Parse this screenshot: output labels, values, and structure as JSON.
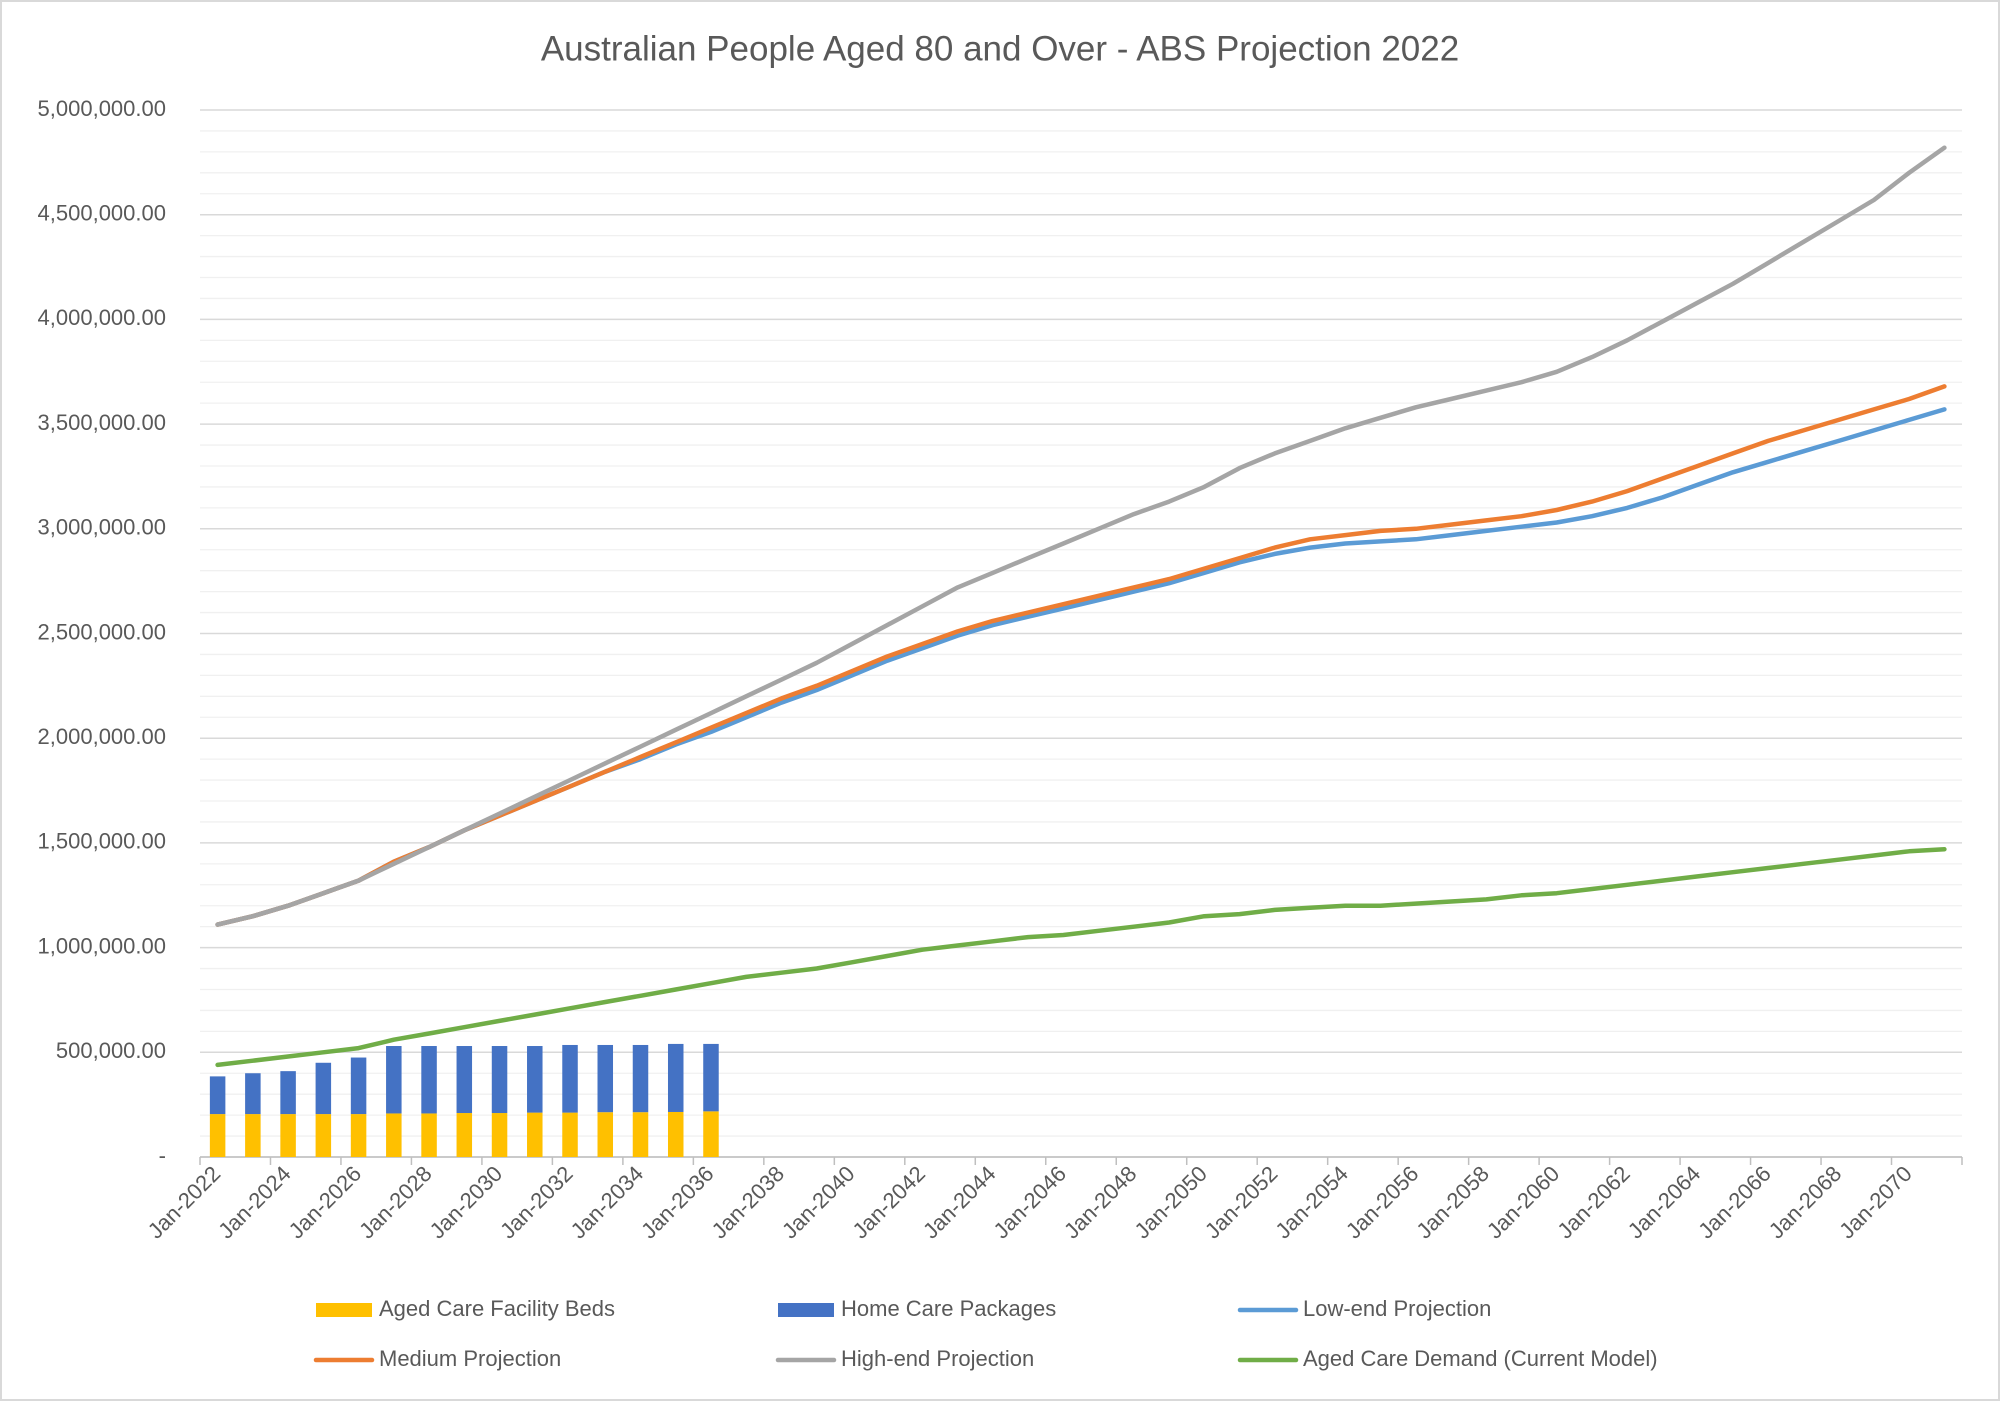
{
  "chart_data": {
    "type": "combo",
    "title": "Australian People Aged 80 and Over - ABS Projection 2022",
    "categories": [
      "Jan-2022",
      null,
      "Jan-2024",
      null,
      "Jan-2026",
      null,
      "Jan-2028",
      null,
      "Jan-2030",
      null,
      "Jan-2032",
      null,
      "Jan-2034",
      null,
      "Jan-2036",
      null,
      "Jan-2038",
      null,
      "Jan-2040",
      null,
      "Jan-2042",
      null,
      "Jan-2044",
      null,
      "Jan-2046",
      null,
      "Jan-2048",
      null,
      "Jan-2050",
      null,
      "Jan-2052",
      null,
      "Jan-2054",
      null,
      "Jan-2056",
      null,
      "Jan-2058",
      null,
      "Jan-2060",
      null,
      "Jan-2062",
      null,
      "Jan-2064",
      null,
      "Jan-2066",
      null,
      "Jan-2068",
      null,
      "Jan-2070",
      null
    ],
    "ylim": [
      0,
      5000000
    ],
    "yticks": [
      {
        "value": 0,
        "label": "-"
      },
      {
        "value": 500000,
        "label": "500,000.00"
      },
      {
        "value": 1000000,
        "label": "1,000,000.00"
      },
      {
        "value": 1500000,
        "label": "1,500,000.00"
      },
      {
        "value": 2000000,
        "label": "2,000,000.00"
      },
      {
        "value": 2500000,
        "label": "2,500,000.00"
      },
      {
        "value": 3000000,
        "label": "3,000,000.00"
      },
      {
        "value": 3500000,
        "label": "3,500,000.00"
      },
      {
        "value": 4000000,
        "label": "4,000,000.00"
      },
      {
        "value": 4500000,
        "label": "4,500,000.00"
      },
      {
        "value": 5000000,
        "label": "5,000,000.00"
      }
    ],
    "minor_yticks": [
      100000,
      200000,
      300000,
      400000,
      600000,
      700000,
      800000,
      900000,
      1100000,
      1200000,
      1300000,
      1400000,
      1600000,
      1700000,
      1800000,
      1900000,
      2100000,
      2200000,
      2300000,
      2400000,
      2600000,
      2700000,
      2800000,
      2900000,
      3100000,
      3200000,
      3300000,
      3400000,
      3600000,
      3700000,
      3800000,
      3900000,
      4100000,
      4200000,
      4300000,
      4400000,
      4600000,
      4700000,
      4800000,
      4900000
    ],
    "grid": true,
    "legend": "bottom",
    "series": [
      {
        "name": "Aged Care Facility Beds",
        "type": "bar",
        "color": "#FFC000",
        "values": [
          205000,
          205000,
          205000,
          205000,
          205000,
          208000,
          208000,
          210000,
          210000,
          212000,
          212000,
          214000,
          214000,
          215000,
          218000,
          null,
          null,
          null,
          null,
          null,
          null,
          null,
          null,
          null,
          null,
          null,
          null,
          null,
          null,
          null,
          null,
          null,
          null,
          null,
          null,
          null,
          null,
          null,
          null,
          null,
          null,
          null,
          null,
          null,
          null,
          null,
          null,
          null,
          null,
          null
        ]
      },
      {
        "name": "Home Care Packages",
        "type": "bar",
        "color": "#4472C4",
        "values": [
          180000,
          195000,
          205000,
          245000,
          270000,
          322000,
          322000,
          320000,
          320000,
          318000,
          323000,
          321000,
          321000,
          325000,
          322000,
          null,
          null,
          null,
          null,
          null,
          null,
          null,
          null,
          null,
          null,
          null,
          null,
          null,
          null,
          null,
          null,
          null,
          null,
          null,
          null,
          null,
          null,
          null,
          null,
          null,
          null,
          null,
          null,
          null,
          null,
          null,
          null,
          null,
          null,
          null
        ]
      },
      {
        "name": "Low-end Projection",
        "type": "line",
        "color": "#5B9BD5",
        "values": [
          1110000,
          1150000,
          1200000,
          1260000,
          1320000,
          1410000,
          1480000,
          1560000,
          1630000,
          1700000,
          1770000,
          1840000,
          1900000,
          1970000,
          2030000,
          2100000,
          2170000,
          2230000,
          2300000,
          2370000,
          2430000,
          2490000,
          2540000,
          2580000,
          2620000,
          2660000,
          2700000,
          2740000,
          2790000,
          2840000,
          2880000,
          2910000,
          2930000,
          2940000,
          2950000,
          2970000,
          2990000,
          3010000,
          3030000,
          3060000,
          3100000,
          3150000,
          3210000,
          3270000,
          3320000,
          3370000,
          3420000,
          3470000,
          3520000,
          3570000
        ]
      },
      {
        "name": "Medium Projection",
        "type": "line",
        "color": "#ED7D31",
        "values": [
          1110000,
          1150000,
          1200000,
          1260000,
          1320000,
          1410000,
          1480000,
          1560000,
          1630000,
          1700000,
          1770000,
          1840000,
          1910000,
          1980000,
          2050000,
          2120000,
          2190000,
          2250000,
          2320000,
          2390000,
          2450000,
          2510000,
          2560000,
          2600000,
          2640000,
          2680000,
          2720000,
          2760000,
          2810000,
          2860000,
          2910000,
          2950000,
          2970000,
          2990000,
          3000000,
          3020000,
          3040000,
          3060000,
          3090000,
          3130000,
          3180000,
          3240000,
          3300000,
          3360000,
          3420000,
          3470000,
          3520000,
          3570000,
          3620000,
          3680000
        ]
      },
      {
        "name": "High-end Projection",
        "type": "line",
        "color": "#A5A5A5",
        "values": [
          1110000,
          1150000,
          1200000,
          1260000,
          1320000,
          1400000,
          1480000,
          1560000,
          1640000,
          1720000,
          1800000,
          1880000,
          1960000,
          2040000,
          2120000,
          2200000,
          2280000,
          2360000,
          2450000,
          2540000,
          2630000,
          2720000,
          2790000,
          2860000,
          2930000,
          3000000,
          3070000,
          3130000,
          3200000,
          3290000,
          3360000,
          3420000,
          3480000,
          3530000,
          3580000,
          3620000,
          3660000,
          3700000,
          3750000,
          3820000,
          3900000,
          3990000,
          4080000,
          4170000,
          4270000,
          4370000,
          4470000,
          4570000,
          4700000,
          4820000
        ]
      },
      {
        "name": "Aged Care Demand (Current Model)",
        "type": "line",
        "color": "#70AD47",
        "values": [
          440000,
          460000,
          480000,
          500000,
          520000,
          560000,
          590000,
          620000,
          650000,
          680000,
          710000,
          740000,
          770000,
          800000,
          830000,
          860000,
          880000,
          900000,
          930000,
          960000,
          990000,
          1010000,
          1030000,
          1050000,
          1060000,
          1080000,
          1100000,
          1120000,
          1150000,
          1160000,
          1180000,
          1190000,
          1200000,
          1200000,
          1210000,
          1220000,
          1230000,
          1250000,
          1260000,
          1280000,
          1300000,
          1320000,
          1340000,
          1360000,
          1380000,
          1400000,
          1420000,
          1440000,
          1460000,
          1470000
        ]
      }
    ]
  }
}
